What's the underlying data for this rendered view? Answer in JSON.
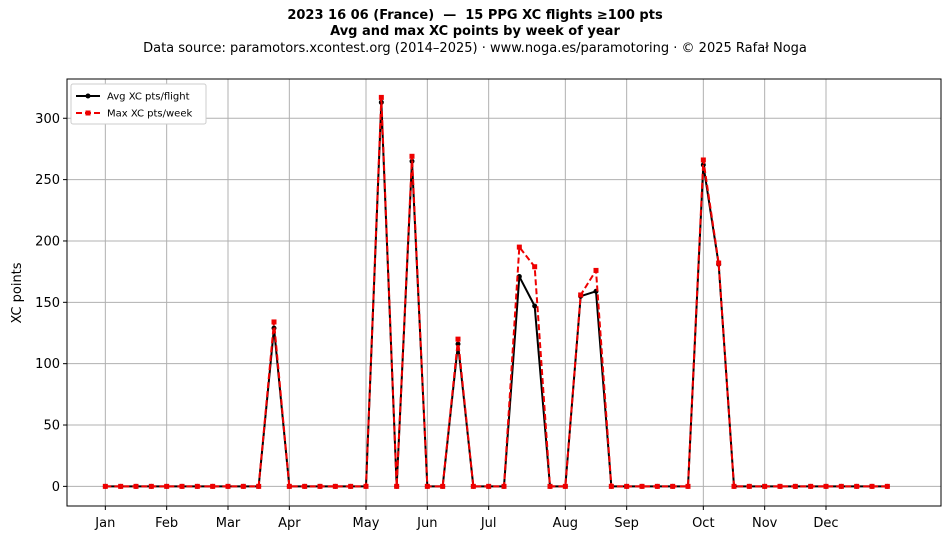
{
  "header": {
    "title": "2023 16 06 (France)  —  15 PPG XC flights ≥100 pts",
    "subtitle": "Avg and max XC points by week of year",
    "source": "Data source: paramotors.xcontest.org (2014–2025)  ·  www.noga.es/paramotoring  ·  © 2025 Rafał Noga"
  },
  "chart_data": {
    "type": "line",
    "title": "2023 16 06 (France)  —  15 PPG XC flights ≥100 pts",
    "subtitle": "Avg and max XC points by week of year",
    "xlabel": "",
    "ylabel": "XC points",
    "x": [
      1,
      2,
      3,
      4,
      5,
      6,
      7,
      8,
      9,
      10,
      11,
      12,
      13,
      14,
      15,
      16,
      17,
      18,
      19,
      20,
      21,
      22,
      23,
      24,
      25,
      26,
      27,
      28,
      29,
      30,
      31,
      32,
      33,
      34,
      35,
      36,
      37,
      38,
      39,
      40,
      41,
      42,
      43,
      44,
      45,
      46,
      47,
      48,
      49,
      50,
      51,
      52
    ],
    "xlim": [
      -1.5,
      55.5
    ],
    "ylim": [
      -16,
      332
    ],
    "month_ticks": [
      {
        "label": "Jan",
        "week": 1
      },
      {
        "label": "Feb",
        "week": 5
      },
      {
        "label": "Mar",
        "week": 9
      },
      {
        "label": "Apr",
        "week": 13
      },
      {
        "label": "May",
        "week": 18
      },
      {
        "label": "Jun",
        "week": 22
      },
      {
        "label": "Jul",
        "week": 26
      },
      {
        "label": "Aug",
        "week": 31
      },
      {
        "label": "Sep",
        "week": 35
      },
      {
        "label": "Oct",
        "week": 40
      },
      {
        "label": "Nov",
        "week": 44
      },
      {
        "label": "Dec",
        "week": 48
      }
    ],
    "y_ticks": [
      0,
      50,
      100,
      150,
      200,
      250,
      300
    ],
    "grid": true,
    "legend_position": "top-left",
    "series": [
      {
        "name": "Avg XC pts/flight",
        "color": "#000000",
        "style": "solid",
        "marker": "circle",
        "values": [
          0,
          0,
          0,
          0,
          0,
          0,
          0,
          0,
          0,
          0,
          0,
          129,
          0,
          0,
          0,
          0,
          0,
          0,
          313,
          0,
          265,
          0,
          0,
          116,
          0,
          0,
          0,
          171,
          147,
          0,
          0,
          155,
          159,
          0,
          0,
          0,
          0,
          0,
          0,
          262,
          181,
          0,
          0,
          0,
          0,
          0,
          0,
          0,
          0,
          0,
          0,
          0
        ]
      },
      {
        "name": "Max XC pts/week",
        "color": "#ee0000",
        "style": "dashed",
        "marker": "square",
        "values": [
          0,
          0,
          0,
          0,
          0,
          0,
          0,
          0,
          0,
          0,
          0,
          134,
          0,
          0,
          0,
          0,
          0,
          0,
          317,
          0,
          269,
          0,
          0,
          120,
          0,
          0,
          0,
          195,
          179,
          0,
          0,
          156,
          176,
          0,
          0,
          0,
          0,
          0,
          0,
          266,
          182,
          0,
          0,
          0,
          0,
          0,
          0,
          0,
          0,
          0,
          0,
          0
        ]
      }
    ]
  }
}
